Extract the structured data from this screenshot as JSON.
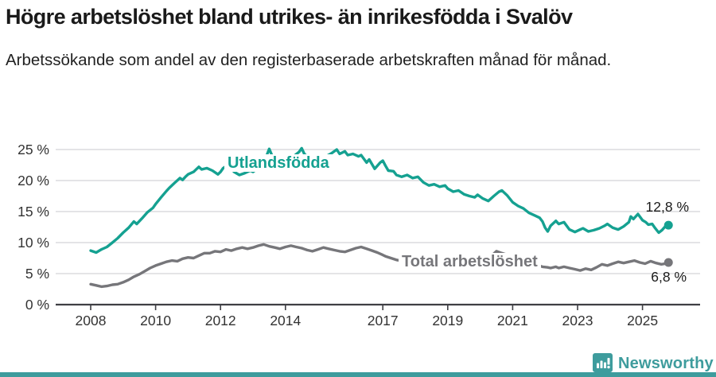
{
  "chart_data": {
    "type": "line",
    "title": "Högre arbetslöshet bland utrikes- än inrikesfödda i Svalöv",
    "subtitle": "Arbetssökande som andel av den registerbaserade arbetskraften månad för månad.",
    "xlabel": "",
    "ylabel": "",
    "grid": "horizontal",
    "x_axis": {
      "min": 2008,
      "max": 2025.8,
      "ticks": [
        2008,
        2010,
        2012,
        2014,
        2017,
        2019,
        2021,
        2023,
        2025
      ],
      "tick_labels": [
        "2008",
        "2010",
        "2012",
        "2014",
        "2017",
        "2019",
        "2021",
        "2023",
        "2025"
      ]
    },
    "y_axis": {
      "min": 0,
      "max": 25,
      "unit": "%",
      "ticks": [
        0,
        5,
        10,
        15,
        20,
        25
      ],
      "tick_labels": [
        "0 %",
        "5 %",
        "10 %",
        "15 %",
        "20 %",
        "25 %"
      ]
    },
    "series": [
      {
        "name": "Utlandsfödda",
        "color": "#15a191",
        "end_label": "12,8 %",
        "last_value": 12.8,
        "points": [
          [
            2008.0,
            8.7
          ],
          [
            2008.17,
            8.4
          ],
          [
            2008.33,
            8.9
          ],
          [
            2008.5,
            9.3
          ],
          [
            2008.67,
            10.0
          ],
          [
            2008.83,
            10.7
          ],
          [
            2009.0,
            11.6
          ],
          [
            2009.17,
            12.4
          ],
          [
            2009.33,
            13.4
          ],
          [
            2009.42,
            13.0
          ],
          [
            2009.58,
            13.9
          ],
          [
            2009.75,
            14.9
          ],
          [
            2009.92,
            15.6
          ],
          [
            2010.0,
            16.2
          ],
          [
            2010.17,
            17.3
          ],
          [
            2010.33,
            18.3
          ],
          [
            2010.42,
            18.8
          ],
          [
            2010.58,
            19.6
          ],
          [
            2010.75,
            20.4
          ],
          [
            2010.83,
            20.1
          ],
          [
            2010.92,
            20.6
          ],
          [
            2011.0,
            21.0
          ],
          [
            2011.17,
            21.4
          ],
          [
            2011.33,
            22.2
          ],
          [
            2011.42,
            21.8
          ],
          [
            2011.58,
            22.0
          ],
          [
            2011.75,
            21.6
          ],
          [
            2011.92,
            21.0
          ],
          [
            2012.0,
            21.4
          ],
          [
            2012.08,
            22.0
          ],
          [
            2012.17,
            22.3
          ],
          [
            2012.33,
            21.9
          ],
          [
            2012.42,
            21.4
          ],
          [
            2012.58,
            20.9
          ],
          [
            2012.75,
            21.2
          ],
          [
            2012.92,
            21.6
          ],
          [
            2013.0,
            21.4
          ],
          [
            2013.08,
            21.7
          ],
          [
            2013.25,
            22.6
          ],
          [
            2013.42,
            24.0
          ],
          [
            2013.5,
            25.1
          ],
          [
            2013.58,
            24.1
          ],
          [
            2013.75,
            23.2
          ],
          [
            2013.92,
            22.8
          ],
          [
            2014.08,
            23.2
          ],
          [
            2014.25,
            23.9
          ],
          [
            2014.42,
            24.6
          ],
          [
            2014.5,
            25.2
          ],
          [
            2014.58,
            24.3
          ],
          [
            2014.75,
            23.5
          ],
          [
            2014.92,
            23.1
          ],
          [
            2015.08,
            23.4
          ],
          [
            2015.25,
            23.9
          ],
          [
            2015.42,
            24.4
          ],
          [
            2015.58,
            25.0
          ],
          [
            2015.67,
            24.3
          ],
          [
            2015.83,
            24.7
          ],
          [
            2015.92,
            24.1
          ],
          [
            2016.08,
            24.3
          ],
          [
            2016.25,
            23.9
          ],
          [
            2016.33,
            24.1
          ],
          [
            2016.5,
            22.9
          ],
          [
            2016.58,
            23.4
          ],
          [
            2016.75,
            21.9
          ],
          [
            2016.92,
            22.9
          ],
          [
            2017.0,
            23.2
          ],
          [
            2017.08,
            22.4
          ],
          [
            2017.17,
            21.6
          ],
          [
            2017.33,
            21.5
          ],
          [
            2017.42,
            20.9
          ],
          [
            2017.58,
            20.6
          ],
          [
            2017.75,
            20.9
          ],
          [
            2017.92,
            20.4
          ],
          [
            2018.08,
            20.6
          ],
          [
            2018.25,
            19.7
          ],
          [
            2018.42,
            19.2
          ],
          [
            2018.58,
            19.4
          ],
          [
            2018.75,
            19.0
          ],
          [
            2018.92,
            19.2
          ],
          [
            2019.0,
            18.7
          ],
          [
            2019.17,
            18.2
          ],
          [
            2019.33,
            18.4
          ],
          [
            2019.5,
            17.8
          ],
          [
            2019.67,
            17.5
          ],
          [
            2019.83,
            17.3
          ],
          [
            2019.92,
            17.7
          ],
          [
            2020.08,
            17.1
          ],
          [
            2020.25,
            16.7
          ],
          [
            2020.42,
            17.5
          ],
          [
            2020.58,
            18.2
          ],
          [
            2020.67,
            18.4
          ],
          [
            2020.83,
            17.6
          ],
          [
            2021.0,
            16.5
          ],
          [
            2021.17,
            15.9
          ],
          [
            2021.33,
            15.5
          ],
          [
            2021.5,
            14.8
          ],
          [
            2021.67,
            14.4
          ],
          [
            2021.83,
            14.0
          ],
          [
            2021.92,
            13.4
          ],
          [
            2022.0,
            12.4
          ],
          [
            2022.08,
            11.8
          ],
          [
            2022.17,
            12.7
          ],
          [
            2022.33,
            13.5
          ],
          [
            2022.42,
            13.0
          ],
          [
            2022.58,
            13.3
          ],
          [
            2022.75,
            12.1
          ],
          [
            2022.92,
            11.7
          ],
          [
            2023.08,
            12.1
          ],
          [
            2023.17,
            12.3
          ],
          [
            2023.33,
            11.8
          ],
          [
            2023.5,
            12.0
          ],
          [
            2023.67,
            12.3
          ],
          [
            2023.83,
            12.7
          ],
          [
            2023.92,
            13.0
          ],
          [
            2024.08,
            12.4
          ],
          [
            2024.25,
            12.1
          ],
          [
            2024.42,
            12.6
          ],
          [
            2024.58,
            13.3
          ],
          [
            2024.64,
            14.2
          ],
          [
            2024.72,
            13.8
          ],
          [
            2024.86,
            14.6
          ],
          [
            2025.0,
            13.6
          ],
          [
            2025.1,
            13.3
          ],
          [
            2025.18,
            12.9
          ],
          [
            2025.3,
            13.0
          ],
          [
            2025.38,
            12.4
          ],
          [
            2025.5,
            11.6
          ],
          [
            2025.6,
            12.0
          ],
          [
            2025.7,
            12.6
          ],
          [
            2025.8,
            12.8
          ]
        ]
      },
      {
        "name": "Total arbetslöshet",
        "color": "#76767a",
        "end_label": "6,8 %",
        "last_value": 6.8,
        "points": [
          [
            2008.0,
            3.3
          ],
          [
            2008.17,
            3.1
          ],
          [
            2008.33,
            2.9
          ],
          [
            2008.5,
            3.0
          ],
          [
            2008.67,
            3.2
          ],
          [
            2008.83,
            3.3
          ],
          [
            2009.0,
            3.6
          ],
          [
            2009.17,
            4.0
          ],
          [
            2009.33,
            4.5
          ],
          [
            2009.5,
            4.9
          ],
          [
            2009.67,
            5.4
          ],
          [
            2009.83,
            5.9
          ],
          [
            2010.0,
            6.3
          ],
          [
            2010.17,
            6.6
          ],
          [
            2010.33,
            6.9
          ],
          [
            2010.5,
            7.1
          ],
          [
            2010.67,
            7.0
          ],
          [
            2010.83,
            7.4
          ],
          [
            2011.0,
            7.6
          ],
          [
            2011.17,
            7.5
          ],
          [
            2011.33,
            7.9
          ],
          [
            2011.5,
            8.3
          ],
          [
            2011.67,
            8.3
          ],
          [
            2011.83,
            8.6
          ],
          [
            2012.0,
            8.5
          ],
          [
            2012.17,
            8.9
          ],
          [
            2012.33,
            8.7
          ],
          [
            2012.5,
            9.0
          ],
          [
            2012.67,
            9.2
          ],
          [
            2012.83,
            9.0
          ],
          [
            2013.0,
            9.2
          ],
          [
            2013.17,
            9.5
          ],
          [
            2013.33,
            9.7
          ],
          [
            2013.5,
            9.4
          ],
          [
            2013.67,
            9.2
          ],
          [
            2013.83,
            9.0
          ],
          [
            2014.0,
            9.3
          ],
          [
            2014.17,
            9.5
          ],
          [
            2014.33,
            9.3
          ],
          [
            2014.5,
            9.1
          ],
          [
            2014.67,
            8.8
          ],
          [
            2014.83,
            8.6
          ],
          [
            2015.0,
            8.9
          ],
          [
            2015.17,
            9.2
          ],
          [
            2015.33,
            9.0
          ],
          [
            2015.5,
            8.8
          ],
          [
            2015.67,
            8.6
          ],
          [
            2015.83,
            8.5
          ],
          [
            2016.0,
            8.8
          ],
          [
            2016.17,
            9.1
          ],
          [
            2016.33,
            9.3
          ],
          [
            2016.5,
            9.0
          ],
          [
            2016.67,
            8.7
          ],
          [
            2016.83,
            8.4
          ],
          [
            2017.0,
            8.0
          ],
          [
            2017.08,
            7.8
          ],
          [
            2017.25,
            7.5
          ],
          [
            2017.42,
            7.2
          ],
          [
            2017.67,
            7.0
          ],
          [
            2017.92,
            6.9
          ],
          [
            2018.17,
            6.8
          ],
          [
            2018.42,
            6.6
          ],
          [
            2018.67,
            6.5
          ],
          [
            2018.92,
            6.4
          ],
          [
            2019.17,
            6.3
          ],
          [
            2019.42,
            6.2
          ],
          [
            2019.67,
            6.2
          ],
          [
            2019.92,
            6.4
          ],
          [
            2020.08,
            6.9
          ],
          [
            2020.33,
            7.8
          ],
          [
            2020.5,
            8.6
          ],
          [
            2020.67,
            8.3
          ],
          [
            2020.92,
            7.9
          ],
          [
            2021.17,
            7.4
          ],
          [
            2021.42,
            6.9
          ],
          [
            2021.67,
            6.5
          ],
          [
            2021.92,
            6.1
          ],
          [
            2022.08,
            6.0
          ],
          [
            2022.17,
            5.9
          ],
          [
            2022.33,
            6.1
          ],
          [
            2022.42,
            5.9
          ],
          [
            2022.58,
            6.1
          ],
          [
            2022.75,
            5.9
          ],
          [
            2022.92,
            5.7
          ],
          [
            2023.08,
            5.5
          ],
          [
            2023.25,
            5.8
          ],
          [
            2023.42,
            5.6
          ],
          [
            2023.58,
            6.0
          ],
          [
            2023.75,
            6.5
          ],
          [
            2023.92,
            6.3
          ],
          [
            2024.08,
            6.6
          ],
          [
            2024.25,
            6.9
          ],
          [
            2024.42,
            6.7
          ],
          [
            2024.58,
            6.9
          ],
          [
            2024.75,
            7.1
          ],
          [
            2024.92,
            6.8
          ],
          [
            2025.08,
            6.6
          ],
          [
            2025.25,
            7.0
          ],
          [
            2025.42,
            6.7
          ],
          [
            2025.58,
            6.5
          ],
          [
            2025.7,
            6.6
          ],
          [
            2025.8,
            6.8
          ]
        ]
      }
    ],
    "style": {
      "axis_color": "#3f3f44",
      "grid_color": "#dcdcde",
      "tick_text_color": "#333333"
    }
  },
  "footer": {
    "brand": "Newsworthy",
    "brand_color": "#3e9c9d",
    "bar_color": "#3e9c9d",
    "logo_icon": "bar-chart-speech-bubble"
  }
}
